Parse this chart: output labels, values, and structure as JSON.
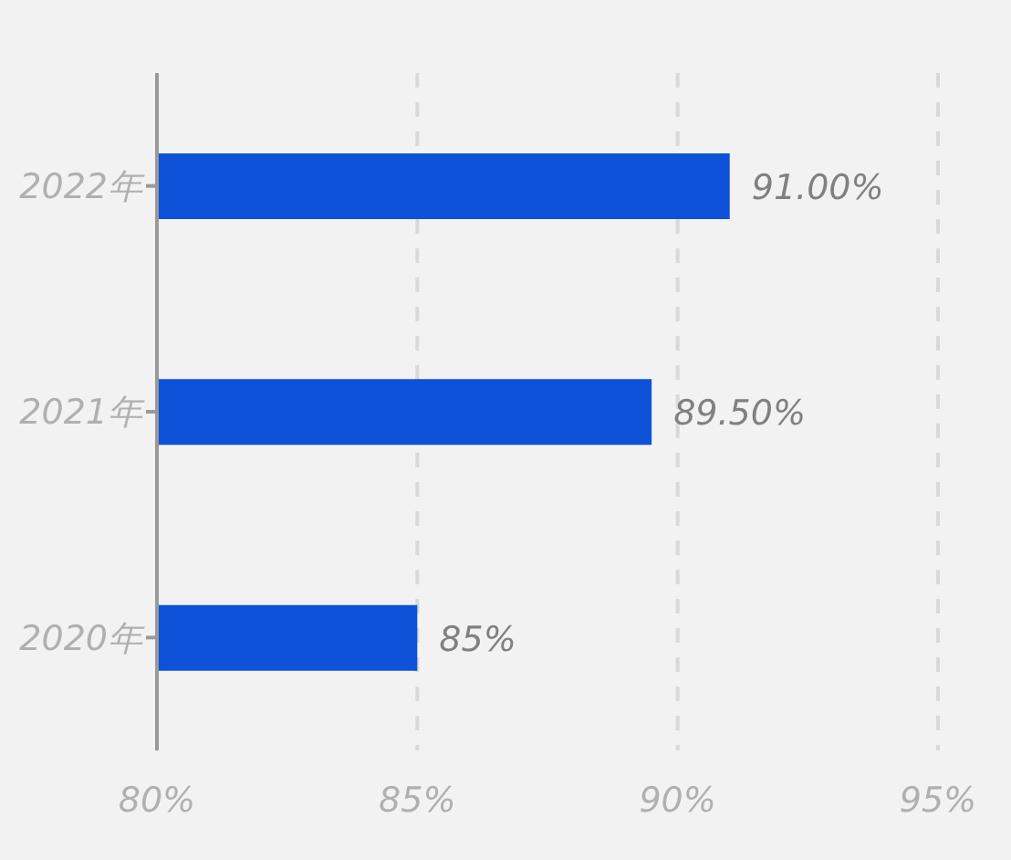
{
  "chart_data": {
    "type": "bar",
    "orientation": "horizontal",
    "categories": [
      "2022年",
      "2021年",
      "2020年"
    ],
    "values": [
      91,
      89.5,
      85
    ],
    "color": "#0d52d9",
    "value_labels": [
      "91.00%",
      "89.50%",
      "85%"
    ],
    "xlim": [
      80,
      95
    ],
    "xticks": [
      {
        "value": 80,
        "label": "80%"
      },
      {
        "value": 85,
        "label": "85%"
      },
      {
        "value": 90,
        "label": "90%"
      },
      {
        "value": 95,
        "label": "95%"
      }
    ],
    "grid": "x",
    "legend": false
  }
}
